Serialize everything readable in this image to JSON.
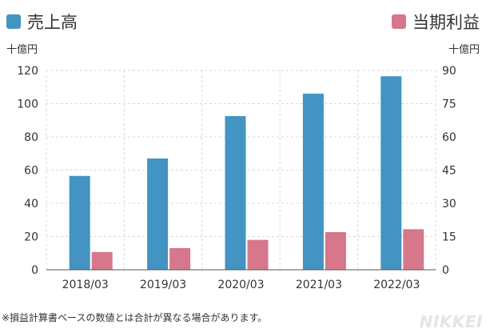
{
  "legend": {
    "left": {
      "label": "売上高",
      "color": "#4393c3"
    },
    "right": {
      "label": "当期利益",
      "color": "#d6778b"
    }
  },
  "units": {
    "left": "十億円",
    "right": "十億円"
  },
  "footnote": "※損益計算書ベースの数値とは合計が異なる場合があります。",
  "logo_text": "NIKKEI",
  "chart_data": {
    "type": "bar",
    "categories": [
      "2018/03",
      "2019/03",
      "2020/03",
      "2021/03",
      "2022/03"
    ],
    "series": [
      {
        "name": "売上高",
        "axis": "left",
        "color": "#4393c3",
        "values": [
          56.5,
          67.0,
          92.5,
          106.0,
          116.5
        ]
      },
      {
        "name": "当期利益",
        "axis": "right",
        "color": "#d6778b",
        "values": [
          8.0,
          9.8,
          13.5,
          17.0,
          18.3
        ]
      }
    ],
    "ylim_left": [
      0,
      120
    ],
    "yticks_left": [
      0,
      20,
      40,
      60,
      80,
      100,
      120
    ],
    "ylim_right": [
      0,
      90
    ],
    "yticks_right": [
      0,
      15,
      30,
      45,
      60,
      75,
      90
    ],
    "grid": true
  }
}
